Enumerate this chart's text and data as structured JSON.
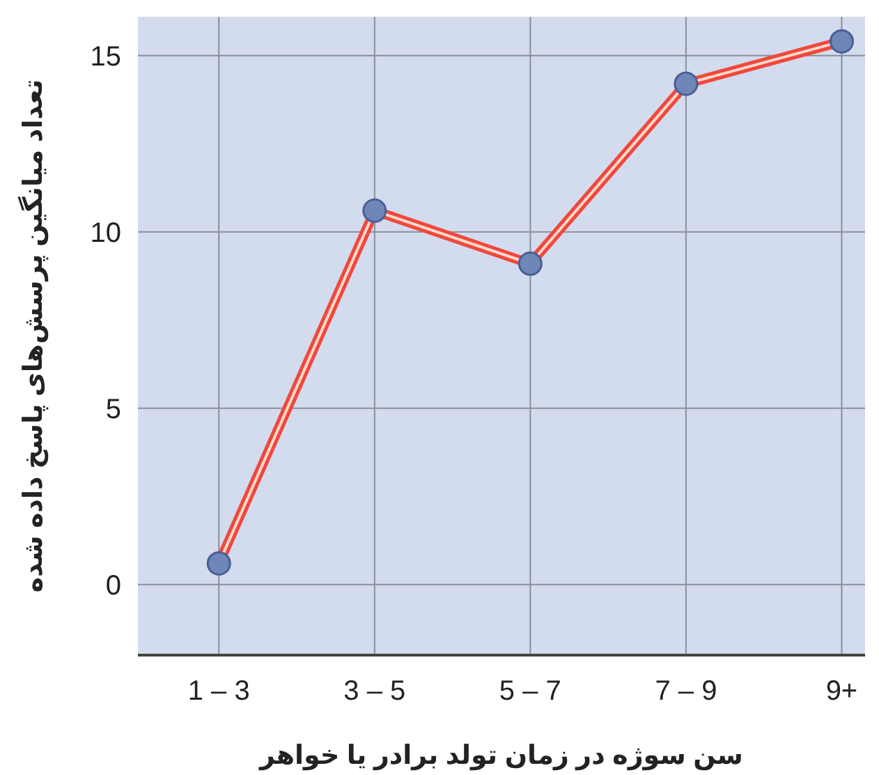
{
  "chart_data": {
    "type": "line",
    "xlabel": "سن سوژه در زمان تولد برادر یا خواهر",
    "ylabel": "تعداد میانگین پرسش‌های پاسخ داده شده",
    "categories": [
      "1 – 3",
      "3 – 5",
      "5 – 7",
      "7 – 9",
      "9+"
    ],
    "series": [
      {
        "color": "#f0483c",
        "values": [
          0.6,
          10.6,
          9.1,
          14.2,
          15.4
        ]
      }
    ],
    "ylim": [
      -2,
      16.1
    ],
    "yticks": [
      0,
      5,
      10,
      15
    ],
    "grid": true,
    "marker": "circle",
    "line_style": "solid"
  }
}
